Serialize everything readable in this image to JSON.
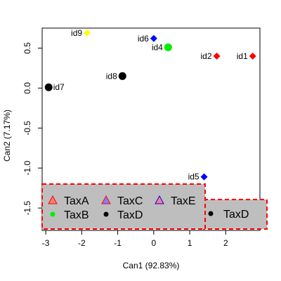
{
  "chart_data": {
    "type": "scatter",
    "xlabel": "Can1 (92.83%)",
    "ylabel": "Can2 (7.17%)",
    "xlim": [
      -3.1,
      2.95
    ],
    "ylim": [
      -1.78,
      0.75
    ],
    "xticks": [
      -3,
      -2,
      -1,
      0,
      1,
      2
    ],
    "yticks": [
      -1.5,
      -1.0,
      -0.5,
      0.0,
      0.5
    ],
    "grid": false,
    "points": [
      {
        "label": "id1",
        "x": 2.75,
        "y": 0.4,
        "shape": "diamond",
        "color": "#ff0000",
        "size": "small",
        "label_side": "left"
      },
      {
        "label": "id2",
        "x": 1.75,
        "y": 0.4,
        "shape": "diamond",
        "color": "#ff0000",
        "size": "small",
        "label_side": "left"
      },
      {
        "label": "id4",
        "x": 0.4,
        "y": 0.51,
        "shape": "circle",
        "color": "#00ee00",
        "size": "large",
        "label_side": "left"
      },
      {
        "label": "id5",
        "x": 1.4,
        "y": -1.11,
        "shape": "diamond",
        "color": "#0000ff",
        "size": "small",
        "label_side": "left"
      },
      {
        "label": "id6",
        "x": 0.0,
        "y": 0.62,
        "shape": "diamond",
        "color": "#0000ff",
        "size": "small",
        "label_side": "left"
      },
      {
        "label": "id7",
        "x": -2.92,
        "y": 0.01,
        "shape": "circle",
        "color": "#000000",
        "size": "large",
        "label_side": "right"
      },
      {
        "label": "id8",
        "x": -0.87,
        "y": 0.15,
        "shape": "circle",
        "color": "#000000",
        "size": "large",
        "label_side": "left"
      },
      {
        "label": "id9",
        "x": -1.85,
        "y": 0.69,
        "shape": "diamond",
        "color": "#ffff00",
        "size": "small",
        "label_side": "left"
      }
    ],
    "legend": {
      "placement": "bottom-left",
      "entries": [
        {
          "name": "TaxA",
          "symbol": "triangle",
          "color": "#ff8080",
          "border": "#ff0000"
        },
        {
          "name": "TaxC",
          "symbol": "triangle",
          "color": "#8080ff",
          "border": "#ff0000"
        },
        {
          "name": "TaxE",
          "symbol": "triangle",
          "color": "#ff8080",
          "border": "#0000ff"
        },
        {
          "name": "TaxB",
          "symbol": "circle",
          "color": "#00ee00"
        },
        {
          "name": "TaxD",
          "symbol": "circle",
          "color": "#000000"
        }
      ]
    },
    "legend2": {
      "placement": "bottom-right",
      "entries": [
        {
          "name": "TaxD",
          "symbol": "circle",
          "color": "#000000"
        }
      ]
    },
    "legend_box_color": "#bebebe",
    "legend_border_color": "#ff0000"
  }
}
